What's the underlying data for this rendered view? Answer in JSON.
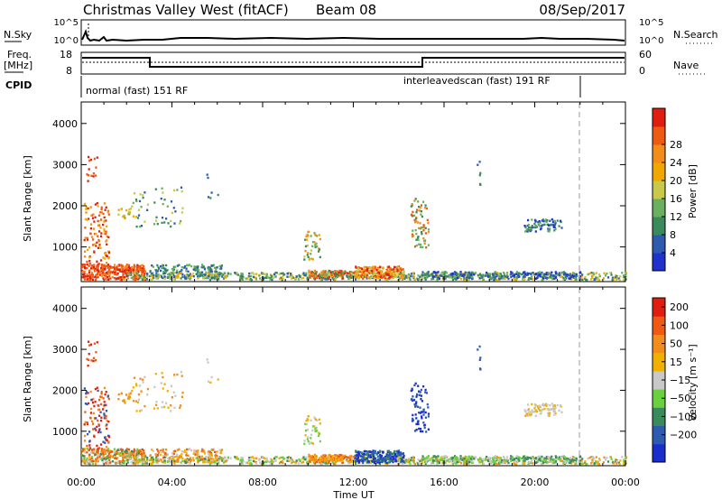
{
  "header": {
    "title": "Christmas Valley West (fitACF)",
    "beam": "Beam 08",
    "date": "08/Sep/2017"
  },
  "panels": {
    "nsky": {
      "label": "N.Sky",
      "ticks": [
        "10^5",
        "10^0"
      ],
      "right_label": "N.Search",
      "right_ticks": [
        "10^5",
        "10^0"
      ]
    },
    "freq": {
      "label_line1": "Freq.",
      "label_line2": "[MHz]",
      "ticks": [
        "18",
        "8"
      ],
      "right_label": "Nave",
      "right_ticks": [
        "60",
        "0"
      ]
    },
    "cpid": {
      "label": "CPID",
      "mode1": "normal (fast) 151 RF",
      "mode2": "interleavedscan (fast) 191 RF"
    }
  },
  "chart_data": [
    {
      "type": "heatmap",
      "title": "",
      "ylabel": "Slant Range [km]",
      "ylim": [
        180,
        4500
      ],
      "yticks": [
        "1000",
        "2000",
        "3000",
        "4000"
      ],
      "colorbar": {
        "label": "Power [dB]",
        "ticks": [
          "4",
          "8",
          "12",
          "16",
          "20",
          "24",
          "28"
        ],
        "colors": [
          "#1f33cc",
          "#2e5bb0",
          "#3a8a5c",
          "#6ab060",
          "#c8c84b",
          "#f0a800",
          "#f28c1a",
          "#ee5a12",
          "#e01e10"
        ]
      }
    },
    {
      "type": "heatmap",
      "title": "",
      "xlabel": "Time UT",
      "ylabel": "Slant Range [km]",
      "ylim": [
        180,
        4500
      ],
      "xticks": [
        "00:00",
        "04:00",
        "08:00",
        "12:00",
        "16:00",
        "20:00",
        "00:00"
      ],
      "yticks": [
        "1000",
        "2000",
        "3000",
        "4000"
      ],
      "colorbar": {
        "label": "Velocity [m s⁻¹]",
        "ticks": [
          "200",
          "100",
          "50",
          "15",
          "−15",
          "−50",
          "−100",
          "−200"
        ],
        "colors": [
          "#1a2ecc",
          "#2e5bb0",
          "#3a8a5c",
          "#6ad040",
          "#c8c8c8",
          "#f0b000",
          "#f28c1a",
          "#ee5a12",
          "#e01e10"
        ]
      }
    }
  ]
}
